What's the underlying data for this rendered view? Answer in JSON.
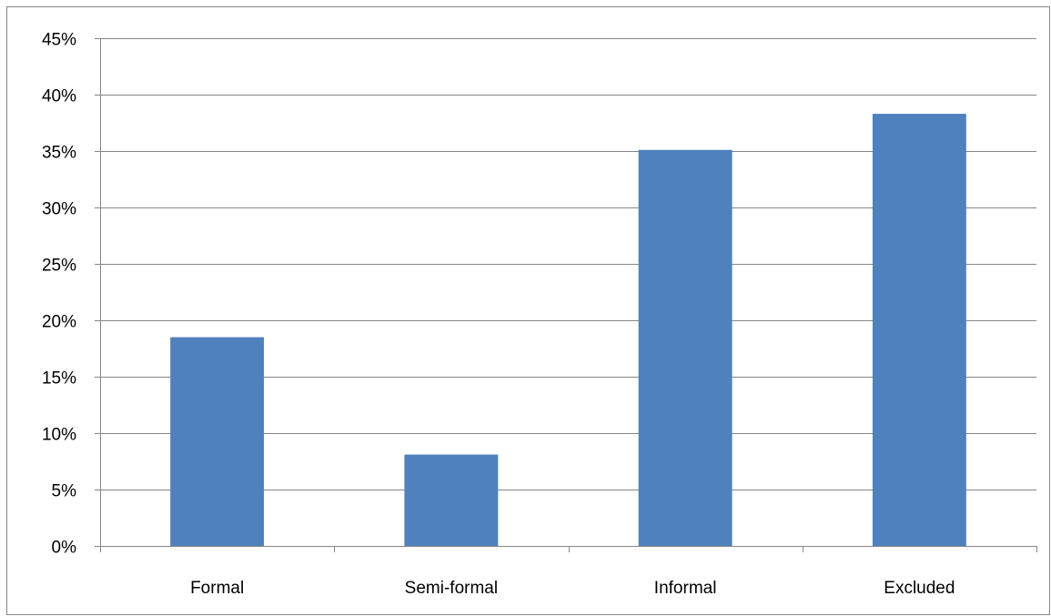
{
  "chart_data": {
    "type": "bar",
    "title": "",
    "xlabel": "",
    "ylabel": "",
    "categories": [
      "Formal",
      "Semi-formal",
      "Informal",
      "Excluded"
    ],
    "values": [
      18.5,
      8.1,
      35.1,
      38.3
    ],
    "ylim": [
      0,
      45
    ],
    "ytick_values": [
      0,
      5,
      10,
      15,
      20,
      25,
      30,
      35,
      40,
      45
    ],
    "ytick_labels": [
      "0%",
      "5%",
      "10%",
      "15%",
      "20%",
      "25%",
      "30%",
      "35%",
      "40%",
      "45%"
    ],
    "grid": true,
    "legend": "none",
    "colors": {
      "bar": "#4F81BD",
      "grid": "#868686",
      "axis": "#868686",
      "border": "#868686"
    }
  }
}
